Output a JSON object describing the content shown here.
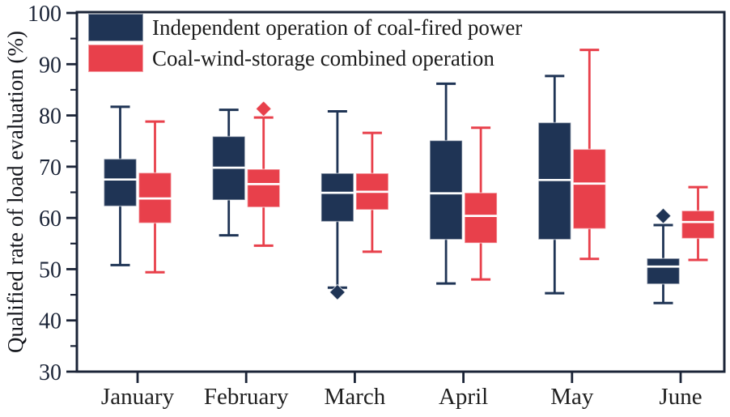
{
  "colors": {
    "axis": "#1B2437",
    "tick_label": "#1B2437",
    "month_label": "#1F1F1F",
    "median_line": "#FFFFFF",
    "background": "#FFFFFF",
    "series_navy": "#1F3455",
    "series_red": "#E8404B"
  },
  "chart_data": {
    "type": "boxplot",
    "title": "",
    "xlabel": "",
    "ylabel": "Qualified rate of load evaluation (%)",
    "categories": [
      "January",
      "February",
      "March",
      "April",
      "May",
      "June"
    ],
    "ylim": [
      30,
      100
    ],
    "ytick_major": [
      30,
      40,
      50,
      60,
      70,
      80,
      90,
      100
    ],
    "ytick_minor": [
      35,
      45,
      55,
      65,
      75,
      85,
      95
    ],
    "grid": false,
    "legend_position": "top-left",
    "series": [
      {
        "name": "Independent operation of coal-fired power",
        "color": "#1F3455",
        "boxes": [
          {
            "category": "January",
            "whisker_low": 50.8,
            "q1": 62.3,
            "median": 67.5,
            "q3": 71.5,
            "whisker_high": 81.7,
            "outliers": []
          },
          {
            "category": "February",
            "whisker_low": 56.6,
            "q1": 63.5,
            "median": 69.8,
            "q3": 75.9,
            "whisker_high": 81.1,
            "outliers": []
          },
          {
            "category": "March",
            "whisker_low": 46.4,
            "q1": 59.3,
            "median": 64.9,
            "q3": 68.7,
            "whisker_high": 80.8,
            "outliers": [
              45.5
            ]
          },
          {
            "category": "April",
            "whisker_low": 47.2,
            "q1": 55.8,
            "median": 64.8,
            "q3": 75.1,
            "whisker_high": 86.2,
            "outliers": []
          },
          {
            "category": "May",
            "whisker_low": 45.3,
            "q1": 55.8,
            "median": 67.4,
            "q3": 78.6,
            "whisker_high": 87.7,
            "outliers": []
          },
          {
            "category": "June",
            "whisker_low": 43.4,
            "q1": 47.1,
            "median": 50.5,
            "q3": 52.1,
            "whisker_high": 58.6,
            "outliers": [
              60.4
            ]
          }
        ]
      },
      {
        "name": "Coal-wind-storage combined operation",
        "color": "#E8404B",
        "boxes": [
          {
            "category": "January",
            "whisker_low": 49.4,
            "q1": 59.0,
            "median": 63.8,
            "q3": 68.8,
            "whisker_high": 78.8,
            "outliers": []
          },
          {
            "category": "February",
            "whisker_low": 54.6,
            "q1": 62.1,
            "median": 66.6,
            "q3": 69.5,
            "whisker_high": 79.6,
            "outliers": [
              81.3
            ]
          },
          {
            "category": "March",
            "whisker_low": 53.4,
            "q1": 61.6,
            "median": 65.1,
            "q3": 68.7,
            "whisker_high": 76.6,
            "outliers": []
          },
          {
            "category": "April",
            "whisker_low": 48.0,
            "q1": 55.1,
            "median": 60.4,
            "q3": 64.9,
            "whisker_high": 77.6,
            "outliers": []
          },
          {
            "category": "May",
            "whisker_low": 52.0,
            "q1": 57.9,
            "median": 66.7,
            "q3": 73.4,
            "whisker_high": 92.8,
            "outliers": []
          },
          {
            "category": "June",
            "whisker_low": 51.8,
            "q1": 56.0,
            "median": 59.2,
            "q3": 61.4,
            "whisker_high": 66.0,
            "outliers": []
          }
        ]
      }
    ]
  }
}
